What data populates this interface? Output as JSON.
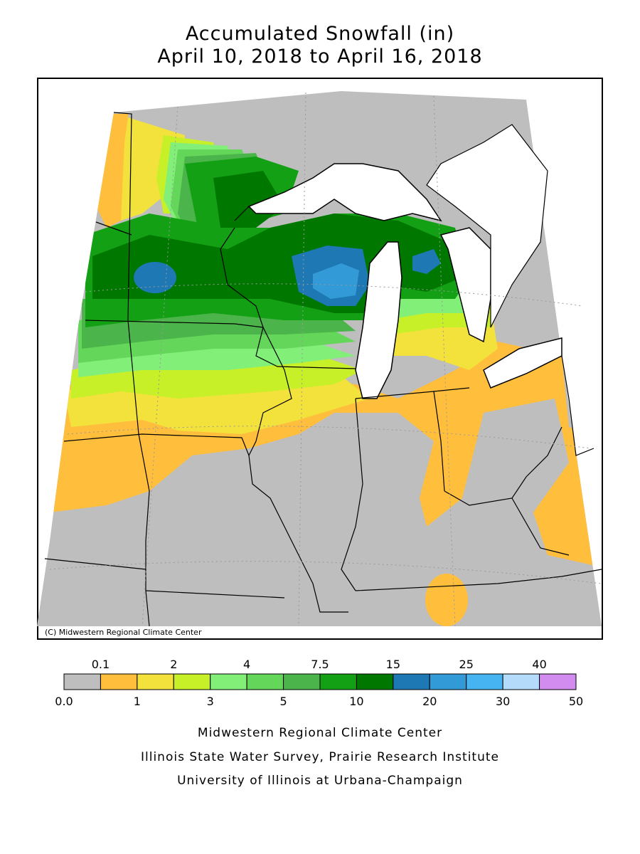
{
  "title": {
    "line1": "Accumulated Snowfall (in)",
    "line2": "April 10, 2018 to April 16, 2018"
  },
  "copyright": "(C) Midwestern Regional Climate Center",
  "legend": {
    "top_labels": [
      "0.1",
      "2",
      "4",
      "7.5",
      "15",
      "25",
      "40"
    ],
    "bottom_labels": [
      "0.0",
      "1",
      "3",
      "5",
      "10",
      "20",
      "30",
      "50"
    ],
    "colors": [
      "#bebebe",
      "#ffbe3c",
      "#f3e13c",
      "#c8f028",
      "#82f078",
      "#64d75a",
      "#4bb44b",
      "#14a014",
      "#007800",
      "#1e78b4",
      "#329bd7",
      "#46b4f0",
      "#b4dcfa",
      "#d28cf0"
    ]
  },
  "credits": {
    "line1": "Midwestern Regional Climate Center",
    "line2": "Illinois State Water Survey, Prairie Research Institute",
    "line3": "University of Illinois at Urbana-Champaign"
  }
}
